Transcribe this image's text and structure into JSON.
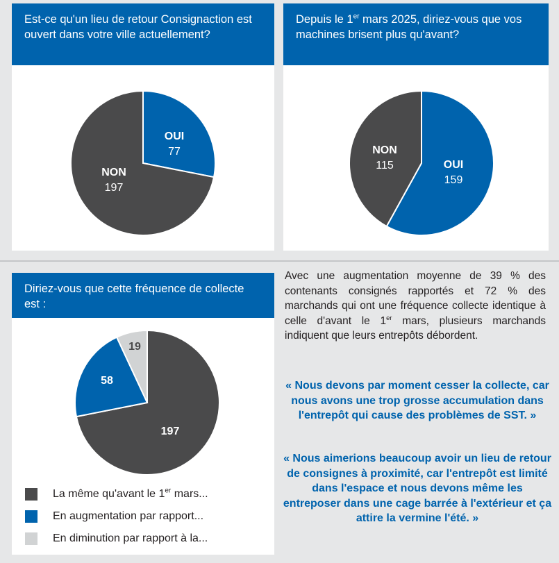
{
  "colors": {
    "brand_blue": "#0063ad",
    "dark_gray": "#4a4a4b",
    "light_gray": "#d1d3d4",
    "background": "#e6e7e8"
  },
  "panel1": {
    "question": "Est-ce qu'un lieu de retour Consignaction est ouvert dans votre ville actuellement?"
  },
  "panel2": {
    "question_before": "Depuis le 1",
    "question_sup": "er",
    "question_after": " mars 2025, diriez-vous que vos machines brisent plus qu'avant?"
  },
  "panel3": {
    "question": "Diriez-vous que cette fréquence de collecte est :"
  },
  "legend": [
    {
      "label_before": "La même qu'avant le 1",
      "label_sup": "er",
      "label_after": " mars...",
      "color": "#4a4a4b"
    },
    {
      "label": "En augmentation par rapport...",
      "color": "#0063ad"
    },
    {
      "label": "En diminution par rapport à la...",
      "color": "#d1d3d4"
    }
  ],
  "body_text": {
    "before": "Avec une augmentation moyenne de 39 % des contenants consignés rapportés et 72 % des marchands qui ont une fréquence collecte identique à celle d'avant le 1",
    "sup": "er",
    "after": " mars, plusieurs marchands indiquent que leurs entrepôts débordent."
  },
  "quote1": "« Nous devons par moment cesser la collecte, car nous avons une trop grosse accumulation dans l'entrepôt qui cause des problèmes de SST. »",
  "quote2": "« Nous aimerions beaucoup avoir un lieu de retour de consignes à proximité, car l'entrepôt est limité dans l'espace et nous devons même les entreposer dans une cage barrée à l'extérieur et ça attire la vermine l'été. »",
  "chart_data": [
    {
      "type": "pie",
      "title": "Est-ce qu'un lieu de retour Consignaction est ouvert dans votre ville actuellement?",
      "slices": [
        {
          "label": "OUI",
          "value": 77,
          "color": "#0063ad"
        },
        {
          "label": "NON",
          "value": 197,
          "color": "#4a4a4b"
        }
      ]
    },
    {
      "type": "pie",
      "title": "Depuis le 1er mars 2025, diriez-vous que vos machines brisent plus qu'avant?",
      "slices": [
        {
          "label": "OUI",
          "value": 159,
          "color": "#0063ad"
        },
        {
          "label": "NON",
          "value": 115,
          "color": "#4a4a4b"
        }
      ]
    },
    {
      "type": "pie",
      "title": "Diriez-vous que cette fréquence de collecte est :",
      "slices": [
        {
          "label": "",
          "value": 197,
          "color": "#4a4a4b"
        },
        {
          "label": "",
          "value": 58,
          "color": "#0063ad"
        },
        {
          "label": "",
          "value": 19,
          "color": "#d1d3d4"
        }
      ]
    }
  ]
}
